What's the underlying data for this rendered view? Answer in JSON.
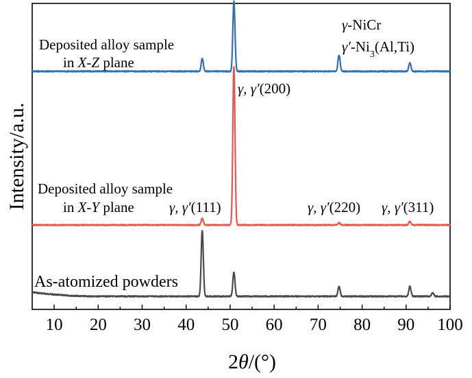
{
  "chart_data": {
    "type": "line",
    "title": "",
    "xlabel": "2θ/(°)",
    "ylabel": "Intensity/a.u.",
    "xlim": [
      5,
      100
    ],
    "x_ticks": [
      "10",
      "20",
      "30",
      "40",
      "50",
      "60",
      "70",
      "80",
      "90",
      "100"
    ],
    "y_ticks_shown": false,
    "grid": false,
    "legend": "none",
    "series": [
      {
        "name": "As-atomized powders",
        "color": "#4a4a4a",
        "peaks": [
          {
            "x": 43.6,
            "height": 0.92
          },
          {
            "x": 50.8,
            "height": 0.34
          },
          {
            "x": 74.7,
            "height": 0.14
          },
          {
            "x": 90.8,
            "height": 0.14
          },
          {
            "x": 96.0,
            "height": 0.05
          }
        ]
      },
      {
        "name": "Deposited alloy sample in X-Y plane",
        "color": "#e8574c",
        "peaks": [
          {
            "x": 43.6,
            "height": 0.09
          },
          {
            "x": 50.8,
            "height": 2.22
          },
          {
            "x": 74.7,
            "height": 0.03
          },
          {
            "x": 90.8,
            "height": 0.05
          }
        ]
      },
      {
        "name": "Deposited alloy sample in X-Z plane",
        "color": "#2f6fb5",
        "peaks": [
          {
            "x": 43.6,
            "height": 0.18
          },
          {
            "x": 50.8,
            "height": 0.98
          },
          {
            "x": 74.7,
            "height": 0.23
          },
          {
            "x": 90.8,
            "height": 0.12
          }
        ]
      }
    ]
  },
  "labels": {
    "xz_line1": "Deposited alloy sample",
    "xz_line2_pre": "in ",
    "xz_line2_italic": "X-Z",
    "xz_line2_post": " plane",
    "xy_line1": "Deposited alloy sample",
    "xy_line2_pre": "in ",
    "xy_line2_italic": "X-Y",
    "xy_line2_post": " plane",
    "powders": "As-atomized powders",
    "legend_gamma_sym": "γ",
    "legend_gamma_text": "-NiCr",
    "legend_gammap_sym": "γ′",
    "legend_gammap_text": "-Ni",
    "legend_gammap_sub": "3",
    "legend_gammap_tail": "(Al,Ti)",
    "peak_sym": "γ, γ′",
    "peak_111": "(111)",
    "peak_200": "(200)",
    "peak_220": "(220)",
    "peak_311": "(311)",
    "xlabel_num": "2",
    "xlabel_theta": "θ",
    "xlabel_unit": "/(°)"
  }
}
